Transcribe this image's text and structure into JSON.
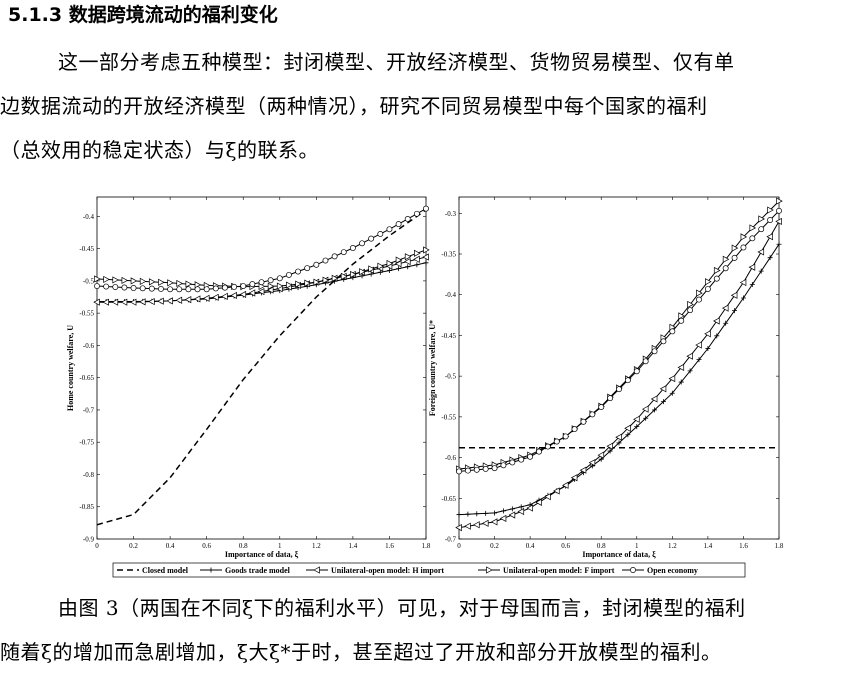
{
  "section": {
    "heading": "5.1.3 数据跨境流动的福利变化"
  },
  "para1": {
    "line1": "这一部分考虑五种模型：封闭模型、开放经济模型、货物贸易模型、仅有单",
    "line2": "边数据流动的开放经济模型（两种情况），研究不同贸易模型中每个国家的福利",
    "line3": "（总效用的稳定状态）与ξ的联系。"
  },
  "para2": {
    "line1": "由图 3（两国在不同ξ下的福利水平）可见，对于母国而言，封闭模型的福利",
    "line2": "随着ξ的增加而急剧增加，ξ大ξ*于时，甚至超过了开放和部分开放模型的福利。"
  },
  "legend": {
    "closed": "Closed model",
    "goods": "Goods trade model",
    "unilateral_h": "Unilateral-open model: H import",
    "unilateral_f": "Unilateral-open model: F import",
    "open": "Open economy"
  },
  "chart_data": [
    {
      "type": "line",
      "xlabel": "Importance of data, ξ",
      "ylabel": "Home country welfare, U",
      "xlim": [
        0,
        1.8
      ],
      "ylim": [
        -0.9,
        -0.37
      ],
      "xticks": [
        "0",
        "0.2",
        "0.4",
        "0.6",
        "0.8",
        "1",
        "1.2",
        "1.4",
        "1.6",
        "1.8"
      ],
      "yticks": [
        "-0.4",
        "-0.45",
        "-0.5",
        "-0.55",
        "-0.6",
        "-0.65",
        "-0.7",
        "-0.75",
        "-0.8",
        "-0.85",
        "-0.9"
      ],
      "x": [
        0,
        0.2,
        0.4,
        0.6,
        0.8,
        1.0,
        1.2,
        1.4,
        1.6,
        1.8
      ],
      "series": [
        {
          "name": "Closed model",
          "values": [
            -0.878,
            -0.862,
            -0.805,
            -0.73,
            -0.653,
            -0.585,
            -0.525,
            -0.474,
            -0.43,
            -0.39
          ]
        },
        {
          "name": "Goods trade model",
          "values": [
            -0.532,
            -0.532,
            -0.531,
            -0.528,
            -0.522,
            -0.515,
            -0.506,
            -0.495,
            -0.484,
            -0.472
          ]
        },
        {
          "name": "Unilateral-open model: H import",
          "values": [
            -0.533,
            -0.533,
            -0.531,
            -0.527,
            -0.521,
            -0.512,
            -0.502,
            -0.49,
            -0.477,
            -0.463
          ]
        },
        {
          "name": "Unilateral-open model: F import",
          "values": [
            -0.497,
            -0.5,
            -0.503,
            -0.507,
            -0.509,
            -0.508,
            -0.502,
            -0.49,
            -0.473,
            -0.452
          ]
        },
        {
          "name": "Open economy",
          "values": [
            -0.508,
            -0.511,
            -0.513,
            -0.513,
            -0.508,
            -0.496,
            -0.475,
            -0.449,
            -0.42,
            -0.388
          ]
        }
      ]
    },
    {
      "type": "line",
      "xlabel": "Importance of data, ξ",
      "ylabel": "Foreign country welfare, U*",
      "xlim": [
        0,
        1.8
      ],
      "ylim": [
        -0.7,
        -0.28
      ],
      "xticks": [
        "0",
        "0.2",
        "0.4",
        "0.6",
        "0.8",
        "1",
        "1.2",
        "1.4",
        "1.6",
        "1.8"
      ],
      "yticks": [
        "-0.3",
        "-0.35",
        "-0.4",
        "-0.45",
        "-0.5",
        "-0.55",
        "-0.6",
        "-0.65",
        "-0.7"
      ],
      "x": [
        0,
        0.2,
        0.4,
        0.6,
        0.8,
        1.0,
        1.2,
        1.4,
        1.6,
        1.8
      ],
      "series": [
        {
          "name": "Closed model",
          "values": [
            -0.588,
            -0.588,
            -0.588,
            -0.588,
            -0.588,
            -0.588,
            -0.588,
            -0.588,
            -0.588,
            -0.588
          ]
        },
        {
          "name": "Goods trade model",
          "values": [
            -0.67,
            -0.668,
            -0.658,
            -0.635,
            -0.602,
            -0.562,
            -0.521,
            -0.466,
            -0.404,
            -0.338
          ]
        },
        {
          "name": "Unilateral-open model: H import",
          "values": [
            -0.686,
            -0.679,
            -0.662,
            -0.634,
            -0.597,
            -0.553,
            -0.503,
            -0.448,
            -0.385,
            -0.31
          ]
        },
        {
          "name": "Unilateral-open model: F import",
          "values": [
            -0.614,
            -0.609,
            -0.597,
            -0.574,
            -0.537,
            -0.492,
            -0.44,
            -0.384,
            -0.329,
            -0.285
          ]
        },
        {
          "name": "Open economy",
          "values": [
            -0.617,
            -0.613,
            -0.599,
            -0.574,
            -0.538,
            -0.494,
            -0.445,
            -0.393,
            -0.342,
            -0.297
          ]
        }
      ]
    }
  ]
}
